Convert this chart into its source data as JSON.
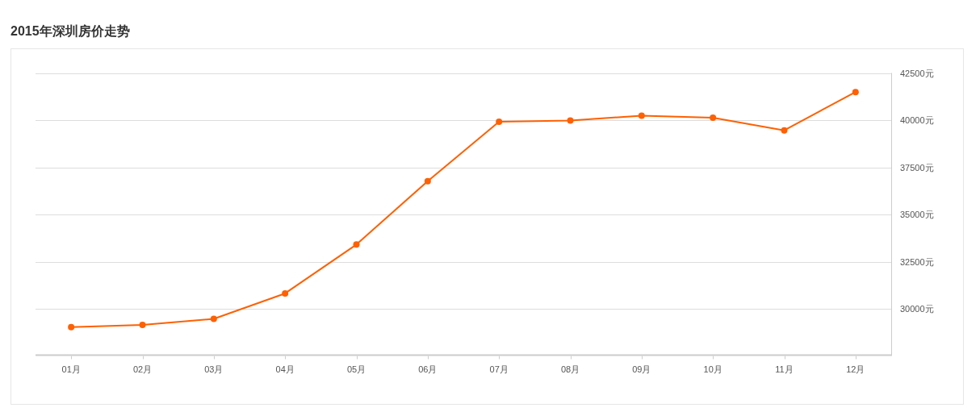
{
  "chart_data": {
    "type": "line",
    "title": "2015年深圳房价走势",
    "categories": [
      "01月",
      "02月",
      "03月",
      "04月",
      "05月",
      "06月",
      "07月",
      "08月",
      "09月",
      "10月",
      "11月",
      "12月"
    ],
    "series": [
      {
        "color": "#ff6000",
        "values": [
          29030,
          29150,
          29470,
          30820,
          33410,
          36770,
          39920,
          39980,
          40240,
          40130,
          39460,
          41490
        ]
      }
    ],
    "ylim": [
      27550,
      42500
    ],
    "yticks": [
      {
        "value": 30000,
        "label": "30000元"
      },
      {
        "value": 32500,
        "label": "32500元"
      },
      {
        "value": 35000,
        "label": "35000元"
      },
      {
        "value": 37500,
        "label": "37500元"
      },
      {
        "value": 40000,
        "label": "40000元"
      },
      {
        "value": 42500,
        "label": "42500元"
      }
    ],
    "grid": "y",
    "marker": "circle",
    "line_style": "solid"
  }
}
